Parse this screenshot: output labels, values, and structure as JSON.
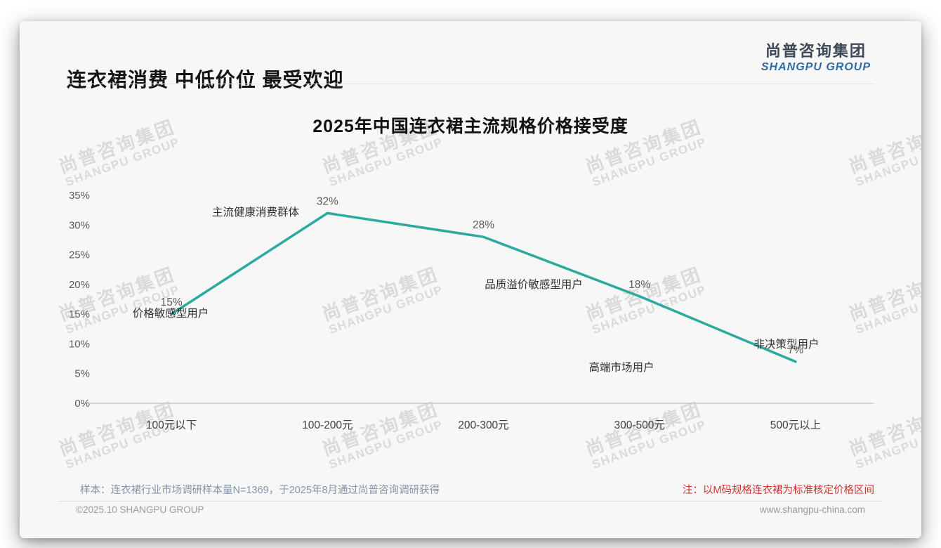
{
  "page": {
    "header": {
      "title": "连衣裙消费 中低价位 最受欢迎"
    },
    "logo": {
      "cn": "尚普咨询集团",
      "en": "SHANGPU GROUP"
    },
    "watermark": {
      "line1": "尚普咨询集团",
      "line2": "SHANGPU GROUP"
    },
    "footer": {
      "sample_note": "样本：连衣裙行业市场调研样本量N=1369，于2025年8月通过尚普咨询调研获得",
      "method_note": "注：以M码规格连衣裙为标准核定价格区间",
      "copyright": "©2025.10 SHANGPU GROUP",
      "website": "www.shangpu-china.com"
    },
    "colors": {
      "line": "#2BAA9E",
      "accent_red": "#CC3333",
      "logo_blue": "#2E6BA5",
      "card_bg": "#F7F7F7"
    }
  },
  "chart_data": {
    "type": "line",
    "title": "2025年中国连衣裙主流规格价格接受度",
    "categories": [
      "100元以下",
      "100-200元",
      "200-300元",
      "300-500元",
      "500元以上"
    ],
    "values": [
      15,
      32,
      28,
      18,
      7
    ],
    "unit": "%",
    "xlabel": "",
    "ylabel": "",
    "ylim": [
      0,
      35
    ],
    "yticks": [
      0,
      5,
      10,
      15,
      20,
      25,
      30,
      35
    ],
    "grid": false,
    "legend": "none",
    "line_color": "#2BAA9E",
    "annotations": [
      {
        "label": "价格敏感型用户",
        "category": "100元以下"
      },
      {
        "label": "主流健康消费群体",
        "category": "100-200元"
      },
      {
        "label": "品质溢价敏感型用户",
        "category": "200-300元"
      },
      {
        "label": "高端市场用户",
        "category": "300-500元"
      },
      {
        "label": "非决策型用户",
        "category": "500元以上"
      }
    ]
  }
}
